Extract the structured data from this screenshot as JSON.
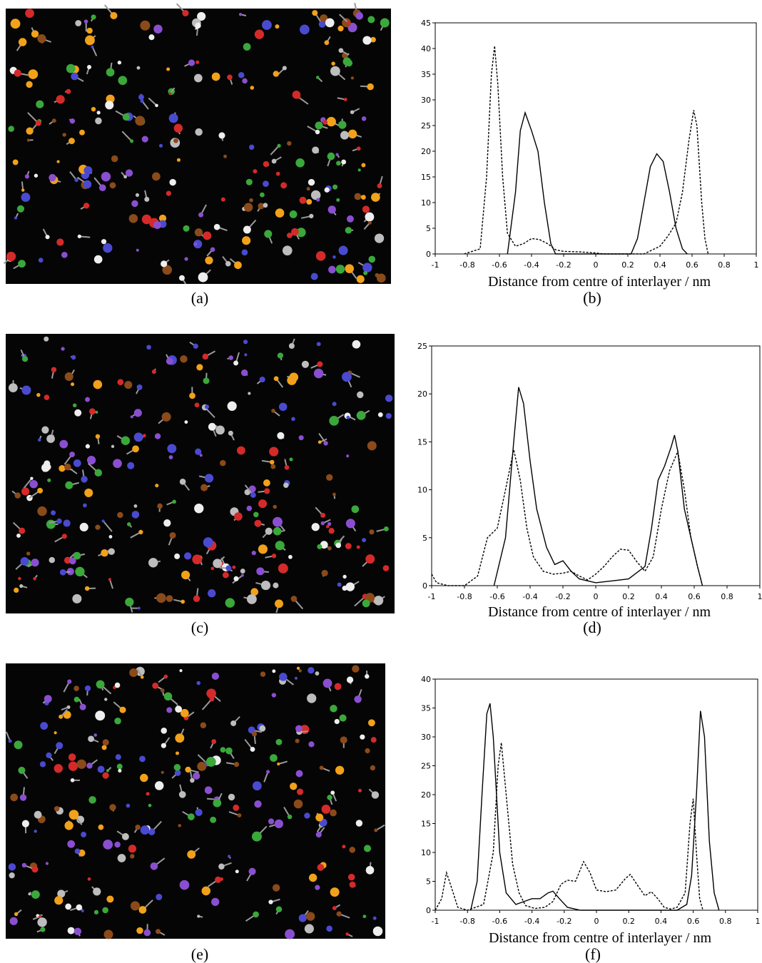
{
  "images": [
    {
      "caption": "(a)"
    },
    {
      "caption": "(c)"
    },
    {
      "caption": "(e)"
    }
  ],
  "chart_data": [
    {
      "type": "line",
      "caption": "(b)",
      "xlabel": "Distance from centre of interlayer / nm",
      "xlim": [
        -1,
        1
      ],
      "xticks": [
        -1,
        -0.8,
        -0.6,
        -0.4,
        -0.2,
        0,
        0.2,
        0.4,
        0.6,
        0.8,
        1
      ],
      "ylim": [
        0,
        45
      ],
      "yticks": [
        0,
        5,
        10,
        15,
        20,
        25,
        30,
        35,
        40,
        45
      ],
      "series": [
        {
          "color": "#000000",
          "dashed": false,
          "x": [
            -0.55,
            -0.5,
            -0.47,
            -0.44,
            -0.4,
            -0.36,
            -0.32,
            -0.28,
            -0.25,
            0,
            0.22,
            0.26,
            0.3,
            0.34,
            0.38,
            0.42,
            0.46,
            0.5,
            0.54,
            0.57
          ],
          "values": [
            0,
            12,
            24,
            27.5,
            24,
            20,
            10,
            2,
            0,
            0,
            0,
            3,
            10,
            17,
            19.5,
            18,
            12,
            5,
            1,
            0
          ]
        },
        {
          "color": "#000000",
          "dashed": true,
          "x": [
            -0.82,
            -0.72,
            -0.68,
            -0.65,
            -0.63,
            -0.61,
            -0.58,
            -0.55,
            -0.5,
            -0.45,
            -0.4,
            -0.35,
            -0.3,
            -0.25,
            -0.2,
            -0.1,
            0,
            0.05,
            0.3,
            0.4,
            0.45,
            0.5,
            0.54,
            0.58,
            0.61,
            0.63,
            0.66,
            0.68,
            0.7
          ],
          "values": [
            0,
            1,
            15,
            35,
            40.5,
            33,
            15,
            4,
            1.5,
            2,
            3,
            2.8,
            2,
            0.8,
            0.5,
            0.4,
            0.2,
            0,
            0,
            1.5,
            3.5,
            6,
            12,
            22,
            28,
            25,
            10,
            3,
            0
          ]
        }
      ]
    },
    {
      "type": "line",
      "caption": "(d)",
      "xlabel": "Distance from centre of interlayer / nm",
      "xlim": [
        -1,
        1
      ],
      "xticks": [
        -1,
        -0.8,
        -0.6,
        -0.4,
        -0.2,
        0,
        0.2,
        0.4,
        0.6,
        0.8,
        1
      ],
      "ylim": [
        0,
        25
      ],
      "yticks": [
        0,
        5,
        10,
        15,
        20,
        25
      ],
      "series": [
        {
          "color": "#000000",
          "dashed": false,
          "x": [
            -0.62,
            -0.55,
            -0.5,
            -0.47,
            -0.44,
            -0.4,
            -0.36,
            -0.3,
            -0.25,
            -0.2,
            -0.15,
            -0.1,
            0,
            0.1,
            0.2,
            0.3,
            0.34,
            0.38,
            0.42,
            0.46,
            0.48,
            0.5,
            0.54,
            0.58,
            0.62,
            0.65
          ],
          "values": [
            0,
            5,
            15,
            20.7,
            19,
            13,
            8,
            4,
            2.2,
            2.6,
            1.5,
            0.7,
            0.3,
            0.5,
            0.7,
            2,
            6,
            11,
            12.5,
            14.5,
            15.7,
            14,
            8,
            5,
            2,
            0
          ]
        },
        {
          "color": "#000000",
          "dashed": true,
          "x": [
            -1,
            -0.97,
            -0.9,
            -0.8,
            -0.72,
            -0.66,
            -0.6,
            -0.55,
            -0.5,
            -0.46,
            -0.42,
            -0.38,
            -0.32,
            -0.26,
            -0.2,
            -0.15,
            -0.1,
            -0.05,
            0,
            0.05,
            0.1,
            0.15,
            0.2,
            0.25,
            0.3,
            0.35,
            0.4,
            0.45,
            0.5,
            0.54,
            0.58,
            0.62,
            0.65
          ],
          "values": [
            1.2,
            0.3,
            0,
            0,
            1,
            5,
            6,
            10,
            14.2,
            11,
            6,
            3,
            1.5,
            1.2,
            1.3,
            1.5,
            1,
            0.6,
            1.2,
            2,
            3,
            3.8,
            3.7,
            2.5,
            1.5,
            3,
            8,
            12,
            14,
            10,
            5,
            2,
            0
          ]
        }
      ]
    },
    {
      "type": "line",
      "caption": "(f)",
      "xlabel": "Distance from centre of interlayer / nm",
      "xlim": [
        -1,
        1
      ],
      "xticks": [
        -1,
        -0.8,
        -0.6,
        -0.4,
        -0.2,
        0,
        0.2,
        0.4,
        0.6,
        0.8,
        1
      ],
      "ylim": [
        0,
        40
      ],
      "yticks": [
        0,
        5,
        10,
        15,
        20,
        25,
        30,
        35,
        40
      ],
      "series": [
        {
          "color": "#000000",
          "dashed": false,
          "x": [
            -0.78,
            -0.74,
            -0.71,
            -0.68,
            -0.66,
            -0.64,
            -0.6,
            -0.56,
            -0.5,
            -0.45,
            -0.4,
            -0.35,
            -0.3,
            -0.27,
            -0.23,
            -0.18,
            -0.1,
            0.5,
            0.56,
            0.59,
            0.62,
            0.645,
            0.67,
            0.7,
            0.73,
            0.76
          ],
          "values": [
            0,
            5,
            20,
            34,
            35.8,
            30,
            10,
            3,
            1,
            1.5,
            2,
            2,
            3,
            3.3,
            2,
            0.5,
            0,
            0,
            1,
            6,
            20,
            34.5,
            30,
            12,
            3,
            0
          ]
        },
        {
          "color": "#000000",
          "dashed": true,
          "x": [
            -1,
            -0.96,
            -0.93,
            -0.9,
            -0.86,
            -0.8,
            -0.7,
            -0.64,
            -0.61,
            -0.59,
            -0.56,
            -0.52,
            -0.48,
            -0.44,
            -0.38,
            -0.32,
            -0.27,
            -0.22,
            -0.18,
            -0.13,
            -0.08,
            -0.04,
            0,
            0.06,
            0.12,
            0.18,
            0.21,
            0.25,
            0.3,
            0.34,
            0.38,
            0.42,
            0.46,
            0.5,
            0.55,
            0.58,
            0.6,
            0.62,
            0.64,
            0.66
          ],
          "values": [
            0,
            2,
            6.5,
            4,
            0.5,
            0,
            1,
            10,
            25,
            29,
            20,
            8,
            3,
            0.8,
            0.3,
            0.5,
            1.5,
            4.5,
            5.2,
            5,
            8.4,
            6.5,
            3.5,
            3.2,
            3.5,
            5.5,
            6.2,
            4.5,
            2.5,
            3.2,
            2,
            0.5,
            0.2,
            0.5,
            3,
            15,
            19.3,
            10,
            2,
            0
          ]
        }
      ]
    }
  ]
}
